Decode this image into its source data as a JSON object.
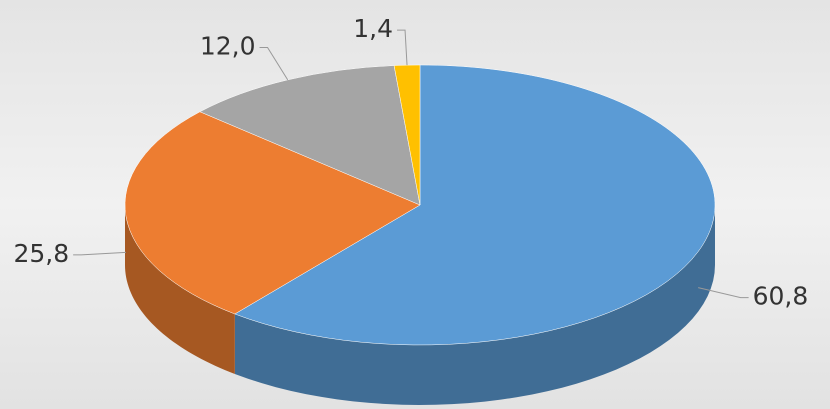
{
  "chart_data": {
    "type": "pie",
    "values": [
      60.8,
      25.8,
      12.0,
      1.4
    ],
    "value_labels": [
      "60,8",
      "25,8",
      "12,0",
      "1,4"
    ],
    "colors": [
      "#5b9bd5",
      "#ed7d31",
      "#a5a5a5",
      "#ffc000"
    ]
  }
}
